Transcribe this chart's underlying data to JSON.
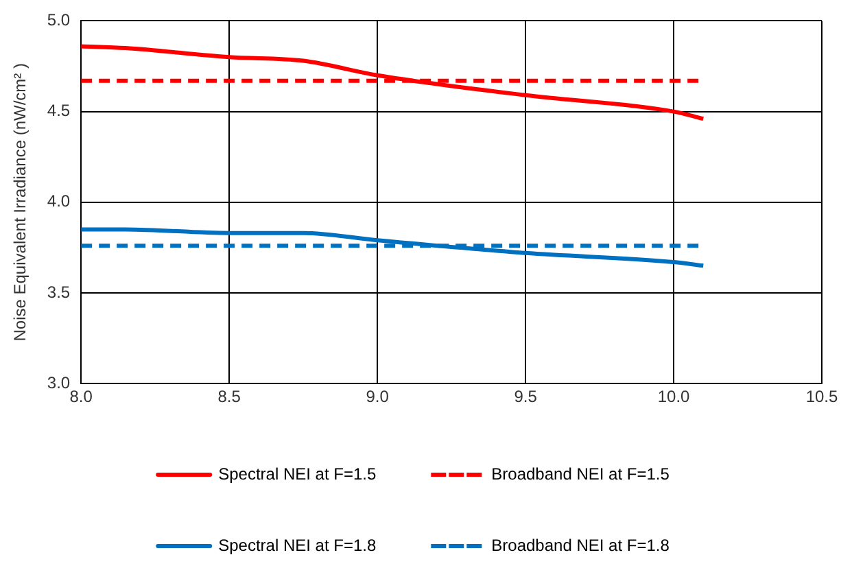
{
  "chart_data": {
    "type": "line",
    "ylabel": "Noise Equivalent Irradiance (nW/cm² )",
    "xlim": [
      8.0,
      10.5
    ],
    "xticks": [
      {
        "value": 8,
        "label": "8.0"
      },
      {
        "value": 8.5,
        "label": "8.5"
      },
      {
        "value": 9,
        "label": "9.0"
      },
      {
        "value": 9.5,
        "label": "9.5"
      },
      {
        "value": 10,
        "label": "10.0"
      },
      {
        "value": 10.5,
        "label": "10.5"
      }
    ],
    "ylim": [
      3.0,
      5.0
    ],
    "yticks": [
      {
        "value": 3,
        "label": "3.0"
      },
      {
        "value": 3.5,
        "label": "3.5"
      },
      {
        "value": 4,
        "label": "4.0"
      },
      {
        "value": 4.5,
        "label": "4.5"
      },
      {
        "value": 5,
        "label": "5.0"
      }
    ],
    "grid": true,
    "legend": "bottom",
    "marker": "none",
    "series": [
      {
        "name": "Spectral NEI at F=1.5",
        "color": "#ff0000",
        "line_style": "solid",
        "x": [
          8.0,
          8.15,
          8.5,
          8.75,
          9.0,
          9.5,
          10.0,
          10.1
        ],
        "values": [
          4.86,
          4.85,
          4.8,
          4.78,
          4.7,
          4.59,
          4.5,
          4.46
        ]
      },
      {
        "name": "Broadband NEI at F=1.5",
        "color": "#ff0000",
        "line_style": "dashed",
        "x": [
          8.0,
          10.1
        ],
        "values": [
          4.67,
          4.67
        ]
      },
      {
        "name": "Spectral NEI at F=1.8",
        "color": "#0070c0",
        "line_style": "solid",
        "x": [
          8.0,
          8.15,
          8.5,
          8.75,
          9.0,
          9.5,
          10.0,
          10.1
        ],
        "values": [
          3.85,
          3.85,
          3.83,
          3.83,
          3.79,
          3.72,
          3.67,
          3.65
        ]
      },
      {
        "name": "Broadband NEI at F=1.8",
        "color": "#0070c0",
        "line_style": "dashed",
        "x": [
          8.0,
          10.1
        ],
        "values": [
          3.76,
          3.76
        ]
      }
    ]
  }
}
